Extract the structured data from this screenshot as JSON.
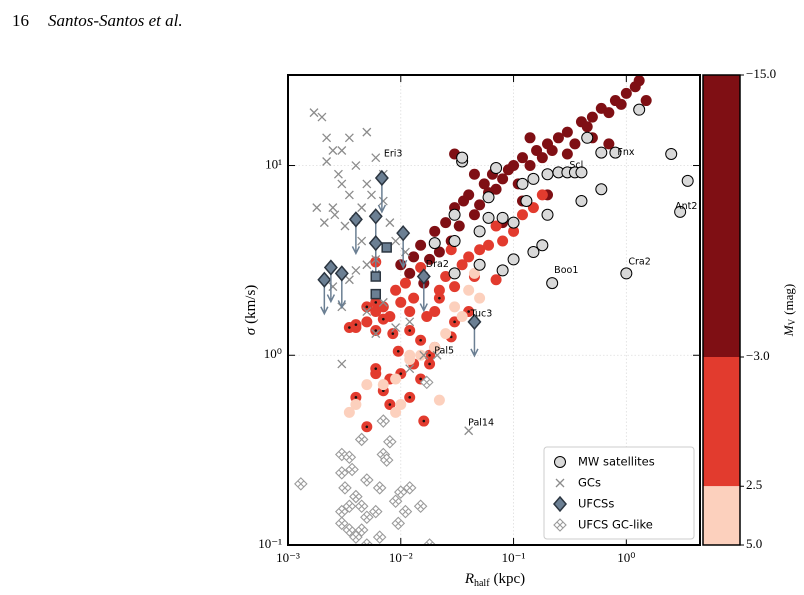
{
  "header": {
    "page": "16",
    "authors": "Santos-Santos et al."
  },
  "chart_data": {
    "type": "scatter",
    "log_x": true,
    "log_y": true,
    "grid": true,
    "legend": "lower right",
    "xlabel": {
      "main": "R",
      "sub": "half",
      "unit": "(kpc)"
    },
    "ylabel": {
      "main": "σ",
      "unit": "(km/s)"
    },
    "xlim": [
      0.001,
      4.5
    ],
    "ylim": [
      0.1,
      30
    ],
    "xticks": [
      {
        "value": 0.001,
        "label": "10⁻³"
      },
      {
        "value": 0.01,
        "label": "10⁻²"
      },
      {
        "value": 0.1,
        "label": "10⁻¹"
      },
      {
        "value": 1,
        "label": "10⁰"
      }
    ],
    "yticks": [
      {
        "value": 0.1,
        "label": "10⁻¹"
      },
      {
        "value": 1,
        "label": "10⁰"
      },
      {
        "value": 10,
        "label": "10¹"
      }
    ],
    "colorbar": {
      "label": {
        "main": "M",
        "sub": "V",
        "unit": "(mag)"
      },
      "lim": [
        -15,
        5
      ],
      "bounds": [
        -15,
        -3,
        2.5,
        5
      ],
      "colors": [
        "#7f0f14",
        "#e23b2e",
        "#fcd0bd"
      ],
      "ticks": [
        {
          "value": -15,
          "label": "−15.0"
        },
        {
          "value": -3,
          "label": "−3.0"
        },
        {
          "value": 2.5,
          "label": "2.5"
        },
        {
          "value": 5,
          "label": "5.0"
        }
      ]
    },
    "simulations": [
      {
        "marker": "circle",
        "mv": -8,
        "x": [
          0.01,
          0.012,
          0.013,
          0.015,
          0.018,
          0.02,
          0.022,
          0.025,
          0.028,
          0.03,
          0.033,
          0.036,
          0.04,
          0.045,
          0.05,
          0.055,
          0.06,
          0.065,
          0.07,
          0.08,
          0.09,
          0.1,
          0.11,
          0.12,
          0.14,
          0.16,
          0.18,
          0.2,
          0.22,
          0.25,
          0.3,
          0.35,
          0.4,
          0.45,
          0.5,
          0.6,
          0.7,
          0.8,
          0.9,
          1.0,
          1.2,
          1.3,
          1.5,
          0.03,
          0.016,
          0.14,
          0.3,
          0.5,
          0.7,
          0.08,
          0.045,
          0.12,
          0.2
        ],
        "values": [
          3,
          2.7,
          3.3,
          3.8,
          3.2,
          4.5,
          3.5,
          5,
          4,
          6,
          4.8,
          6.5,
          7,
          5.5,
          6.2,
          8,
          7.2,
          9,
          7.5,
          8.5,
          9.5,
          10,
          8,
          11,
          10,
          12,
          11,
          13,
          12,
          14,
          15,
          13,
          17,
          16,
          18,
          20,
          19,
          22,
          21,
          24,
          26,
          28,
          22,
          11.5,
          2.4,
          14,
          11.5,
          14,
          13,
          5,
          9,
          6.5,
          7
        ]
      },
      {
        "marker": "circle",
        "mv": 0,
        "x": [
          0.004,
          0.005,
          0.006,
          0.007,
          0.008,
          0.009,
          0.01,
          0.011,
          0.012,
          0.013,
          0.015,
          0.017,
          0.02,
          0.022,
          0.025,
          0.03,
          0.035,
          0.04,
          0.05,
          0.06,
          0.07,
          0.08,
          0.1,
          0.12,
          0.15,
          0.18,
          0.07,
          0.013,
          0.006,
          0.008,
          0.028,
          0.045,
          0.006,
          0.02
        ],
        "values": [
          1.4,
          1.5,
          1.7,
          1.8,
          1.6,
          2.2,
          1.9,
          2.4,
          1.7,
          2.0,
          2.9,
          1.6,
          1.7,
          2.2,
          2.6,
          2.3,
          3,
          3.3,
          3.6,
          3.8,
          2.5,
          4,
          4.5,
          5.5,
          6,
          7,
          4.8,
          0.9,
          0.8,
          0.75,
          3.6,
          2.6,
          3.1,
          1.1
        ]
      },
      {
        "marker": "dotted-circle",
        "mv": 0,
        "x": [
          0.0035,
          0.004,
          0.005,
          0.006,
          0.007,
          0.006,
          0.0085,
          0.0095,
          0.01,
          0.006,
          0.007,
          0.008,
          0.005,
          0.004,
          0.012,
          0.015,
          0.018,
          0.018,
          0.015,
          0.016,
          0.022,
          0.012,
          0.03,
          0.028,
          0.04
        ],
        "values": [
          1.4,
          1.45,
          1.8,
          1.35,
          1.55,
          1.9,
          1.3,
          1.05,
          0.8,
          0.85,
          0.65,
          0.55,
          0.42,
          0.6,
          1.35,
          1.2,
          1.0,
          0.9,
          0.75,
          0.45,
          2.0,
          0.6,
          1.5,
          1.25,
          1.7
        ]
      },
      {
        "marker": "circle",
        "mv": 4,
        "x": [
          0.0035,
          0.004,
          0.005,
          0.007,
          0.009,
          0.009,
          0.01,
          0.012,
          0.015,
          0.02,
          0.025,
          0.03,
          0.035,
          0.04,
          0.045,
          0.05,
          0.022,
          0.012
        ],
        "values": [
          0.5,
          0.55,
          0.7,
          0.7,
          0.75,
          0.5,
          0.55,
          0.95,
          1.0,
          1.1,
          1.3,
          1.8,
          1.6,
          2.2,
          2.7,
          2.0,
          0.58,
          1.0
        ]
      }
    ],
    "series": [
      {
        "name": "GCs",
        "marker": "x",
        "color": "#8c8c8c",
        "x": [
          0.0017,
          0.002,
          0.0022,
          0.0025,
          0.0022,
          0.003,
          0.0035,
          0.0028,
          0.004,
          0.005,
          0.005,
          0.0055,
          0.0045,
          0.0035,
          0.003,
          0.0025,
          0.0018,
          0.0021,
          0.0026,
          0.0032,
          0.004,
          0.006,
          0.007,
          0.007,
          0.008,
          0.009,
          0.011,
          0.006,
          0.005,
          0.004,
          0.0035,
          0.0025,
          0.003,
          0.005,
          0.007,
          0.009,
          0.012,
          0.006,
          0.003,
          0.021,
          0.016,
          0.012,
          0.04,
          0.016,
          0.0045
        ],
        "values": [
          19,
          18,
          14,
          12,
          10.5,
          12,
          14,
          9,
          10,
          15,
          8,
          7,
          6,
          7,
          8,
          6,
          6,
          5,
          5.5,
          4.8,
          5.2,
          11,
          9,
          6.5,
          5,
          4,
          3.5,
          3.2,
          3,
          2.8,
          2.5,
          2.3,
          1.8,
          1.7,
          1.9,
          1.4,
          1.5,
          1.3,
          0.9,
          1.0,
          1.0,
          0.85,
          0.4,
          2.6,
          4
        ]
      },
      {
        "name": "UFCS GC-like",
        "marker": "hatched-diamond",
        "color": "#9a9a9a",
        "x": [
          0.0013,
          0.003,
          0.0035,
          0.003,
          0.0032,
          0.0037,
          0.004,
          0.0045,
          0.0035,
          0.003,
          0.003,
          0.0035,
          0.004,
          0.0045,
          0.005,
          0.005,
          0.006,
          0.0065,
          0.005,
          0.007,
          0.0075,
          0.0065,
          0.007,
          0.008,
          0.009,
          0.0095,
          0.011,
          0.01,
          0.012,
          0.015,
          0.017,
          0.018,
          0.0045
        ],
        "values": [
          0.21,
          0.3,
          0.29,
          0.24,
          0.2,
          0.25,
          0.18,
          0.16,
          0.16,
          0.15,
          0.13,
          0.12,
          0.11,
          0.12,
          0.1,
          0.14,
          0.15,
          0.2,
          0.22,
          0.3,
          0.28,
          0.11,
          0.45,
          0.35,
          0.17,
          0.13,
          0.15,
          0.19,
          0.2,
          0.16,
          0.72,
          0.1,
          0.36
        ]
      },
      {
        "name": "MW satellites",
        "marker": "circle",
        "color": "#d9d9d9",
        "edgecolor": "#000000",
        "x": [
          0.03,
          0.035,
          0.035,
          0.07,
          0.06,
          0.05,
          0.08,
          0.1,
          0.12,
          0.15,
          0.2,
          0.25,
          0.3,
          0.35,
          0.4,
          0.45,
          0.6,
          0.8,
          1.3,
          2.5,
          3.5,
          3,
          1,
          0.22,
          0.15,
          0.1,
          0.08,
          0.03,
          0.02,
          0.06,
          0.13,
          0.2,
          0.4,
          0.6,
          0.03,
          0.05,
          0.18
        ],
        "values": [
          5.5,
          10.5,
          11,
          9.7,
          5.3,
          4.5,
          5.3,
          5,
          8,
          8.5,
          9,
          9.2,
          9.2,
          9.2,
          9.2,
          14,
          11.7,
          11.7,
          19.7,
          11.5,
          8.3,
          5.7,
          2.7,
          2.4,
          3.5,
          3.2,
          2.8,
          2.7,
          3.9,
          6.8,
          6.5,
          5.5,
          6.5,
          7.5,
          4,
          3,
          3.8
        ]
      },
      {
        "name": "UFCSs",
        "marker": "diamond",
        "color": "#6b7f93",
        "edgecolor": "#2b3540",
        "x": [
          0.0021,
          0.0024,
          0.003,
          0.004,
          0.006,
          0.006,
          0.0068,
          0.0105,
          0.016,
          0.045
        ],
        "values": [
          2.5,
          2.9,
          2.7,
          5.2,
          5.4,
          3.9,
          8.6,
          4.4,
          2.6,
          1.5
        ],
        "upper_limits": [
          true,
          true,
          true,
          true,
          true,
          true,
          true,
          true,
          true,
          true
        ]
      },
      {
        "marker": "square",
        "color": "#6b7f93",
        "edgecolor": "#2b3540",
        "x": [
          0.0075,
          0.006,
          0.006
        ],
        "values": [
          3.7,
          2.6,
          2.1
        ]
      }
    ],
    "annotations": [
      {
        "text": "Eri3",
        "x": 0.0068,
        "y": 11.5
      },
      {
        "text": "Fnx",
        "x": 0.8,
        "y": 11.7
      },
      {
        "text": "Scl",
        "x": 0.3,
        "y": 10
      },
      {
        "text": "Ant2",
        "x": 2.6,
        "y": 6.1
      },
      {
        "text": "Cra2",
        "x": 1.0,
        "y": 3.1
      },
      {
        "text": "Boo1",
        "x": 0.22,
        "y": 2.8
      },
      {
        "text": "Dra2",
        "x": 0.016,
        "y": 3.0
      },
      {
        "text": "Tuc3",
        "x": 0.04,
        "y": 1.65
      },
      {
        "text": "Pal5",
        "x": 0.019,
        "y": 1.05
      },
      {
        "text": "Pal14",
        "x": 0.038,
        "y": 0.44
      }
    ]
  }
}
